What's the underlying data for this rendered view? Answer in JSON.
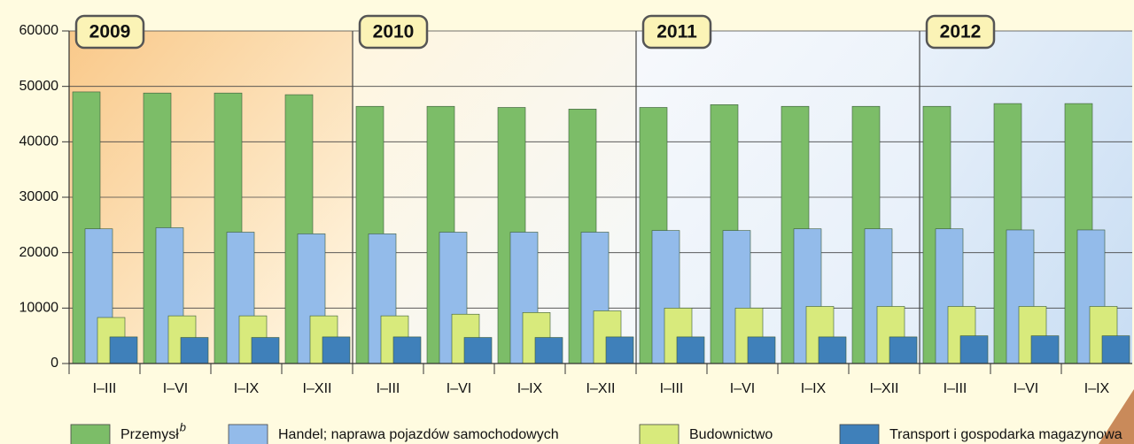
{
  "chart_data": {
    "type": "bar",
    "groups": [
      "2009",
      "2010",
      "2011",
      "2012"
    ],
    "categories": [
      "I–III",
      "I–VI",
      "I–IX",
      "I–XII",
      "I–III",
      "I–VI",
      "I–IX",
      "I–XII",
      "I–III",
      "I–VI",
      "I–IX",
      "I–XII",
      "I–III",
      "I–VI",
      "I–IX"
    ],
    "series": [
      {
        "name": "Przemysł",
        "footnote_mark": "b",
        "color": "#7cbd68",
        "values": [
          49000,
          48800,
          48800,
          48500,
          46400,
          46400,
          46200,
          45900,
          46200,
          46700,
          46400,
          46400,
          46400,
          46900,
          46900
        ]
      },
      {
        "name": "Handel; naprawa pojazdów samochodowych",
        "color": "#93bbea",
        "values": [
          24300,
          24500,
          23700,
          23400,
          23400,
          23700,
          23700,
          23700,
          24000,
          24000,
          24300,
          24300,
          24300,
          24100,
          24100
        ]
      },
      {
        "name": "Budownictwo",
        "color": "#d8ea7c",
        "values": [
          8300,
          8600,
          8600,
          8600,
          8600,
          8900,
          9200,
          9500,
          10000,
          10000,
          10300,
          10300,
          10300,
          10300,
          10300
        ]
      },
      {
        "name": "Transport i gospodarka magazynowa",
        "color": "#3f80ba",
        "values": [
          4800,
          4700,
          4700,
          4800,
          4800,
          4700,
          4700,
          4800,
          4800,
          4800,
          4800,
          4800,
          5000,
          5000,
          5000
        ]
      }
    ],
    "ylim": [
      0,
      60000
    ],
    "yticks": [
      0,
      10000,
      20000,
      30000,
      40000,
      50000,
      60000
    ],
    "grid": true
  }
}
